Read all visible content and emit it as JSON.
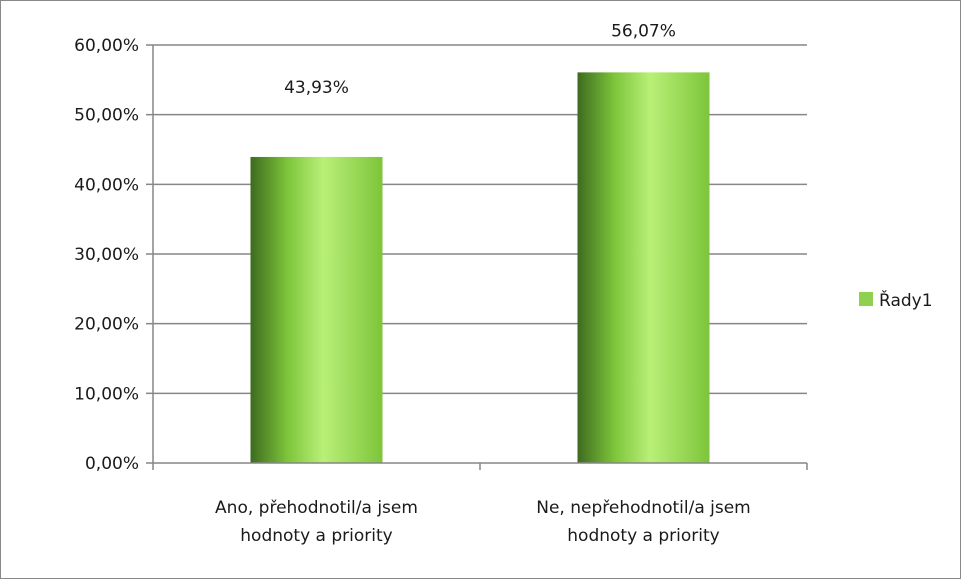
{
  "chart_data": {
    "type": "bar",
    "categories": [
      [
        "Ano, přehodnotil/a jsem",
        "hodnoty a priority"
      ],
      [
        "Ne, nepřehodnotil/a jsem",
        "hodnoty a priority"
      ]
    ],
    "series": [
      {
        "name": "Řady1",
        "values": [
          0.4393,
          0.5607
        ],
        "data_labels": [
          "43,93%",
          "56,07%"
        ]
      }
    ],
    "ylim": [
      0,
      0.6
    ],
    "y_ticks": [
      0,
      0.1,
      0.2,
      0.3,
      0.4,
      0.5,
      0.6
    ],
    "y_tick_labels": [
      "0,00%",
      "10,00%",
      "20,00%",
      "30,00%",
      "40,00%",
      "50,00%",
      "60,00%"
    ],
    "grid": true,
    "legend_position": "right",
    "colors": {
      "bar_dark": "#3d6b1f",
      "bar_mid": "#7dc53a",
      "bar_light": "#b8f078",
      "legend": "#8fd14f",
      "grid": "#868686"
    }
  }
}
